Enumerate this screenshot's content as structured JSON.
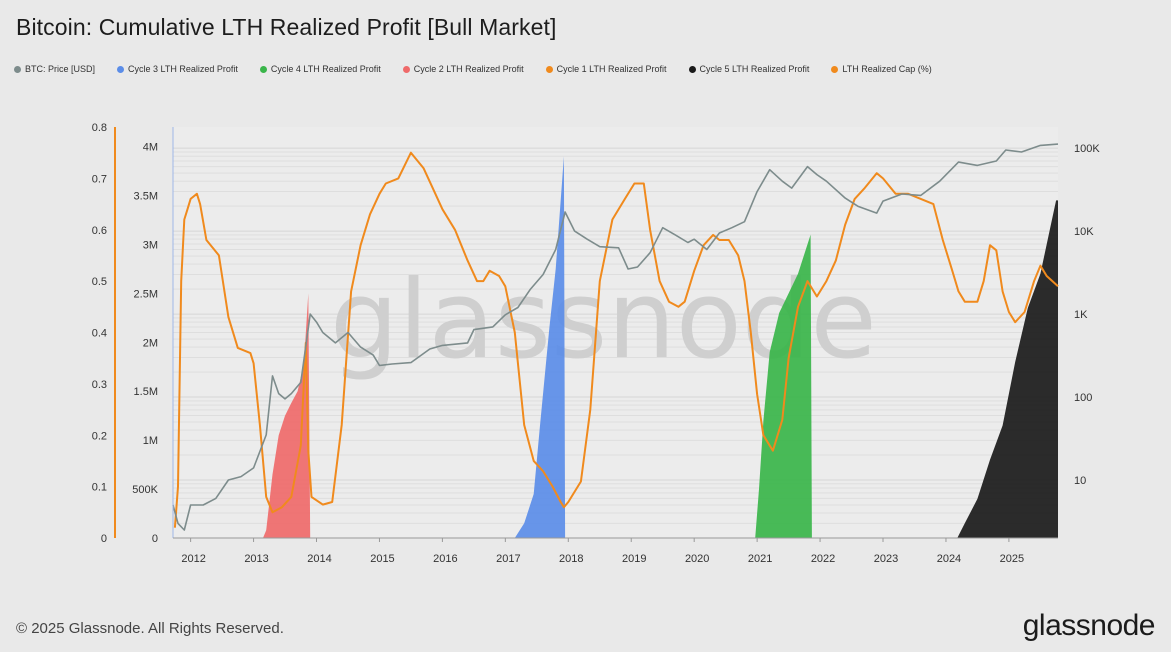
{
  "title": "Bitcoin: Cumulative LTH Realized Profit [Bull Market]",
  "legend": [
    {
      "label": "BTC: Price [USD]",
      "color": "#7d8c8c"
    },
    {
      "label": "Cycle 3 LTH Realized Profit",
      "color": "#5b8de8"
    },
    {
      "label": "Cycle 4 LTH Realized Profit",
      "color": "#3ab54a"
    },
    {
      "label": "Cycle 2 LTH Realized Profit",
      "color": "#ef6a6a"
    },
    {
      "label": "Cycle 1 LTH Realized Profit",
      "color": "#f08a1d"
    },
    {
      "label": "Cycle 5 LTH Realized Profit",
      "color": "#1a1a1a"
    },
    {
      "label": "LTH Realized Cap (%)",
      "color": "#f08a1d"
    }
  ],
  "watermark": "glassnode",
  "footer": "© 2025 Glassnode. All Rights Reserved.",
  "brand": "glassnode",
  "chart_data": {
    "type": "area",
    "x_ticks": [
      "2012",
      "2013",
      "2014",
      "2015",
      "2016",
      "2017",
      "2018",
      "2019",
      "2020",
      "2021",
      "2022",
      "2023",
      "2024",
      "2025"
    ],
    "x_range": [
      2011.72,
      2025.78
    ],
    "y_left_outer": {
      "label": "LTH Realized Cap (%)",
      "range": [
        0,
        0.8
      ],
      "ticks": [
        "0",
        "0.1",
        "0.2",
        "0.3",
        "0.4",
        "0.5",
        "0.6",
        "0.7",
        "0.8"
      ]
    },
    "y_left_inner": {
      "label": "Cumulative LTH Realized Profit",
      "range": [
        0,
        4200000
      ],
      "ticks": [
        "0",
        "500K",
        "1M",
        "1.5M",
        "2M",
        "2.5M",
        "3M",
        "3.5M",
        "4M"
      ]
    },
    "y_right": {
      "label": "BTC: Price [USD]",
      "scale": "log",
      "range": [
        2,
        180000
      ],
      "ticks": [
        "10",
        "100",
        "1K",
        "10K",
        "100K"
      ]
    },
    "series": [
      {
        "name": "Cycle 2 LTH Realized Profit",
        "axis": "inner",
        "color": "#ef6a6a",
        "points": [
          [
            2013.15,
            0
          ],
          [
            2013.2,
            80000
          ],
          [
            2013.3,
            650000
          ],
          [
            2013.4,
            1050000
          ],
          [
            2013.5,
            1250000
          ],
          [
            2013.6,
            1380000
          ],
          [
            2013.7,
            1500000
          ],
          [
            2013.8,
            1780000
          ],
          [
            2013.87,
            2500000
          ],
          [
            2013.9,
            0
          ]
        ]
      },
      {
        "name": "Cycle 3 LTH Realized Profit",
        "axis": "inner",
        "color": "#5b8de8",
        "points": [
          [
            2017.15,
            0
          ],
          [
            2017.3,
            150000
          ],
          [
            2017.45,
            450000
          ],
          [
            2017.55,
            1150000
          ],
          [
            2017.7,
            2150000
          ],
          [
            2017.8,
            2750000
          ],
          [
            2017.93,
            3900000
          ],
          [
            2017.95,
            0
          ]
        ]
      },
      {
        "name": "Cycle 4 LTH Realized Profit",
        "axis": "inner",
        "color": "#3ab54a",
        "points": [
          [
            2020.97,
            0
          ],
          [
            2021.03,
            500000
          ],
          [
            2021.1,
            1200000
          ],
          [
            2021.2,
            1900000
          ],
          [
            2021.35,
            2300000
          ],
          [
            2021.5,
            2500000
          ],
          [
            2021.65,
            2700000
          ],
          [
            2021.85,
            3100000
          ],
          [
            2021.87,
            0
          ]
        ]
      },
      {
        "name": "Cycle 5 LTH Realized Profit",
        "axis": "inner",
        "color": "#1a1a1a",
        "points": [
          [
            2024.18,
            0
          ],
          [
            2024.3,
            150000
          ],
          [
            2024.5,
            400000
          ],
          [
            2024.7,
            800000
          ],
          [
            2024.9,
            1150000
          ],
          [
            2025.1,
            1800000
          ],
          [
            2025.3,
            2350000
          ],
          [
            2025.5,
            2700000
          ],
          [
            2025.65,
            3150000
          ],
          [
            2025.75,
            3450000
          ],
          [
            2025.78,
            3450000
          ],
          [
            2025.78,
            0
          ]
        ]
      },
      {
        "name": "LTH Realized Cap (%)",
        "axis": "outer",
        "color": "#f08a1d",
        "points": [
          [
            2011.75,
            0.02
          ],
          [
            2011.8,
            0.1
          ],
          [
            2011.85,
            0.5
          ],
          [
            2011.9,
            0.62
          ],
          [
            2011.95,
            0.64
          ],
          [
            2012.0,
            0.66
          ],
          [
            2012.1,
            0.67
          ],
          [
            2012.15,
            0.65
          ],
          [
            2012.25,
            0.58
          ],
          [
            2012.45,
            0.55
          ],
          [
            2012.6,
            0.43
          ],
          [
            2012.75,
            0.37
          ],
          [
            2012.95,
            0.36
          ],
          [
            2013.0,
            0.34
          ],
          [
            2013.1,
            0.22
          ],
          [
            2013.2,
            0.08
          ],
          [
            2013.3,
            0.05
          ],
          [
            2013.45,
            0.06
          ],
          [
            2013.6,
            0.08
          ],
          [
            2013.75,
            0.18
          ],
          [
            2013.83,
            0.38
          ],
          [
            2013.87,
            0.17
          ],
          [
            2013.92,
            0.08
          ],
          [
            2014.1,
            0.065
          ],
          [
            2014.25,
            0.07
          ],
          [
            2014.4,
            0.22
          ],
          [
            2014.55,
            0.48
          ],
          [
            2014.7,
            0.57
          ],
          [
            2014.85,
            0.63
          ],
          [
            2015.0,
            0.67
          ],
          [
            2015.1,
            0.69
          ],
          [
            2015.3,
            0.7
          ],
          [
            2015.5,
            0.75
          ],
          [
            2015.7,
            0.72
          ],
          [
            2015.85,
            0.68
          ],
          [
            2016.0,
            0.64
          ],
          [
            2016.2,
            0.6
          ],
          [
            2016.4,
            0.54
          ],
          [
            2016.55,
            0.5
          ],
          [
            2016.65,
            0.5
          ],
          [
            2016.75,
            0.52
          ],
          [
            2016.9,
            0.51
          ],
          [
            2017.0,
            0.49
          ],
          [
            2017.15,
            0.4
          ],
          [
            2017.3,
            0.22
          ],
          [
            2017.45,
            0.15
          ],
          [
            2017.6,
            0.13
          ],
          [
            2017.75,
            0.1
          ],
          [
            2017.88,
            0.07
          ],
          [
            2017.93,
            0.06
          ],
          [
            2018.0,
            0.07
          ],
          [
            2018.2,
            0.11
          ],
          [
            2018.35,
            0.25
          ],
          [
            2018.5,
            0.5
          ],
          [
            2018.7,
            0.62
          ],
          [
            2018.9,
            0.66
          ],
          [
            2019.05,
            0.69
          ],
          [
            2019.2,
            0.69
          ],
          [
            2019.3,
            0.6
          ],
          [
            2019.45,
            0.5
          ],
          [
            2019.6,
            0.46
          ],
          [
            2019.75,
            0.45
          ],
          [
            2019.85,
            0.46
          ],
          [
            2020.0,
            0.52
          ],
          [
            2020.15,
            0.57
          ],
          [
            2020.3,
            0.59
          ],
          [
            2020.4,
            0.58
          ],
          [
            2020.55,
            0.58
          ],
          [
            2020.7,
            0.55
          ],
          [
            2020.8,
            0.5
          ],
          [
            2020.9,
            0.4
          ],
          [
            2021.0,
            0.28
          ],
          [
            2021.1,
            0.2
          ],
          [
            2021.25,
            0.17
          ],
          [
            2021.4,
            0.23
          ],
          [
            2021.5,
            0.35
          ],
          [
            2021.65,
            0.45
          ],
          [
            2021.8,
            0.5
          ],
          [
            2021.95,
            0.47
          ],
          [
            2022.1,
            0.5
          ],
          [
            2022.25,
            0.54
          ],
          [
            2022.4,
            0.61
          ],
          [
            2022.55,
            0.66
          ],
          [
            2022.7,
            0.68
          ],
          [
            2022.9,
            0.71
          ],
          [
            2023.0,
            0.7
          ],
          [
            2023.2,
            0.67
          ],
          [
            2023.4,
            0.67
          ],
          [
            2023.6,
            0.66
          ],
          [
            2023.8,
            0.65
          ],
          [
            2023.95,
            0.58
          ],
          [
            2024.1,
            0.52
          ],
          [
            2024.2,
            0.48
          ],
          [
            2024.3,
            0.46
          ],
          [
            2024.5,
            0.46
          ],
          [
            2024.6,
            0.5
          ],
          [
            2024.7,
            0.57
          ],
          [
            2024.8,
            0.56
          ],
          [
            2024.9,
            0.48
          ],
          [
            2025.0,
            0.44
          ],
          [
            2025.1,
            0.42
          ],
          [
            2025.25,
            0.44
          ],
          [
            2025.4,
            0.5
          ],
          [
            2025.5,
            0.53
          ],
          [
            2025.6,
            0.51
          ],
          [
            2025.78,
            0.49
          ]
        ]
      },
      {
        "name": "BTC: Price [USD]",
        "axis": "right",
        "color": "#7d8c8c",
        "points": [
          [
            2011.72,
            5
          ],
          [
            2011.8,
            3
          ],
          [
            2011.9,
            2.5
          ],
          [
            2012.0,
            5
          ],
          [
            2012.2,
            5
          ],
          [
            2012.4,
            6
          ],
          [
            2012.6,
            10
          ],
          [
            2012.8,
            11
          ],
          [
            2013.0,
            14
          ],
          [
            2013.2,
            35
          ],
          [
            2013.3,
            180
          ],
          [
            2013.4,
            110
          ],
          [
            2013.5,
            95
          ],
          [
            2013.6,
            110
          ],
          [
            2013.75,
            150
          ],
          [
            2013.9,
            1000
          ],
          [
            2014.0,
            800
          ],
          [
            2014.1,
            600
          ],
          [
            2014.3,
            450
          ],
          [
            2014.5,
            600
          ],
          [
            2014.7,
            400
          ],
          [
            2014.9,
            320
          ],
          [
            2015.0,
            240
          ],
          [
            2015.2,
            250
          ],
          [
            2015.5,
            260
          ],
          [
            2015.8,
            380
          ],
          [
            2016.0,
            420
          ],
          [
            2016.4,
            450
          ],
          [
            2016.5,
            650
          ],
          [
            2016.8,
            700
          ],
          [
            2017.0,
            980
          ],
          [
            2017.2,
            1200
          ],
          [
            2017.4,
            2000
          ],
          [
            2017.6,
            3000
          ],
          [
            2017.8,
            6000
          ],
          [
            2017.95,
            17000
          ],
          [
            2018.1,
            10000
          ],
          [
            2018.3,
            8000
          ],
          [
            2018.5,
            6500
          ],
          [
            2018.8,
            6300
          ],
          [
            2018.95,
            3500
          ],
          [
            2019.1,
            3700
          ],
          [
            2019.3,
            5500
          ],
          [
            2019.5,
            11000
          ],
          [
            2019.7,
            9000
          ],
          [
            2019.9,
            7300
          ],
          [
            2020.0,
            8000
          ],
          [
            2020.2,
            6000
          ],
          [
            2020.4,
            9500
          ],
          [
            2020.6,
            11000
          ],
          [
            2020.8,
            13000
          ],
          [
            2021.0,
            30000
          ],
          [
            2021.2,
            55000
          ],
          [
            2021.4,
            40000
          ],
          [
            2021.55,
            33000
          ],
          [
            2021.8,
            60000
          ],
          [
            2021.95,
            48000
          ],
          [
            2022.1,
            40000
          ],
          [
            2022.4,
            25000
          ],
          [
            2022.6,
            20000
          ],
          [
            2022.9,
            16500
          ],
          [
            2023.0,
            23000
          ],
          [
            2023.3,
            28000
          ],
          [
            2023.6,
            27000
          ],
          [
            2023.9,
            40000
          ],
          [
            2024.2,
            68000
          ],
          [
            2024.5,
            62000
          ],
          [
            2024.8,
            70000
          ],
          [
            2024.95,
            95000
          ],
          [
            2025.2,
            90000
          ],
          [
            2025.5,
            108000
          ],
          [
            2025.78,
            112000
          ]
        ]
      }
    ]
  }
}
